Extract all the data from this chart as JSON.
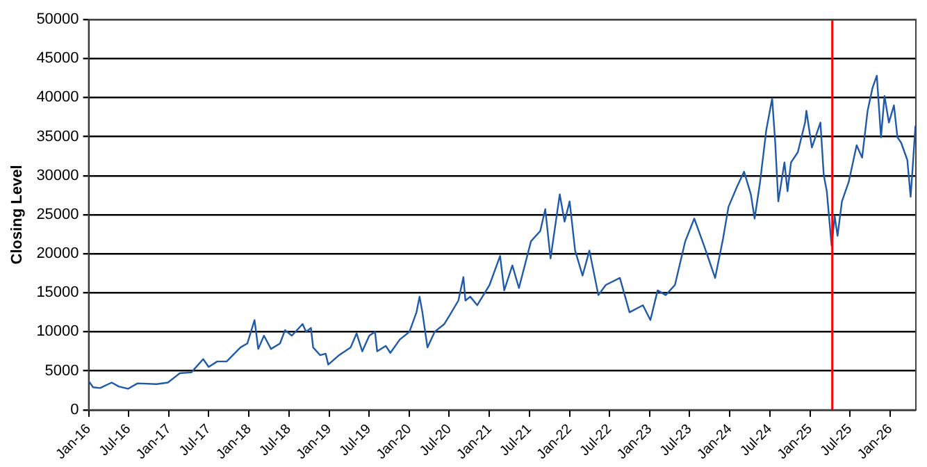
{
  "chart_data": {
    "type": "line",
    "ylabel": "Closing Level",
    "x": [
      "2016-01-01",
      "2016-01-21",
      "2016-02-22",
      "2016-04-15",
      "2016-05-17",
      "2016-06-28",
      "2016-08-11",
      "2016-11-06",
      "2016-12-27",
      "2017-02-20",
      "2017-04-13",
      "2017-06-06",
      "2017-07-01",
      "2017-08-09",
      "2017-09-21",
      "2017-11-23",
      "2017-12-24",
      "2018-01-26",
      "2018-02-12",
      "2018-03-10",
      "2018-04-11",
      "2018-05-22",
      "2018-06-14",
      "2018-07-15",
      "2018-09-02",
      "2018-09-18",
      "2018-10-10",
      "2018-10-20",
      "2018-11-21",
      "2018-12-16",
      "2018-12-28",
      "2019-02-15",
      "2019-04-09",
      "2019-05-06",
      "2019-06-01",
      "2019-07-03",
      "2019-07-29",
      "2019-08-08",
      "2019-09-16",
      "2019-10-07",
      "2019-11-19",
      "2020-01-02",
      "2020-02-03",
      "2020-02-17",
      "2020-03-01",
      "2020-03-24",
      "2020-04-26",
      "2020-06-09",
      "2020-07-01",
      "2020-08-12",
      "2020-09-04",
      "2020-09-13",
      "2020-10-05",
      "2020-11-06",
      "2021-01-01",
      "2021-02-18",
      "2021-03-09",
      "2021-04-15",
      "2021-05-15",
      "2021-07-09",
      "2021-08-20",
      "2021-09-12",
      "2021-10-06",
      "2021-11-17",
      "2021-12-09",
      "2022-01-01",
      "2022-01-26",
      "2022-03-01",
      "2022-04-01",
      "2022-05-12",
      "2022-06-15",
      "2022-08-18",
      "2022-10-01",
      "2022-12-01",
      "2023-01-04",
      "2023-02-06",
      "2023-03-15",
      "2023-04-26",
      "2023-06-12",
      "2023-07-23",
      "2023-09-06",
      "2023-10-26",
      "2023-12-01",
      "2023-12-26",
      "2024-02-03",
      "2024-03-06",
      "2024-04-06",
      "2024-04-23",
      "2024-05-18",
      "2024-06-15",
      "2024-07-12",
      "2024-07-26",
      "2024-08-09",
      "2024-09-06",
      "2024-09-20",
      "2024-10-06",
      "2024-11-06",
      "2024-12-09",
      "2024-12-15",
      "2025-01-09",
      "2025-02-17",
      "2025-03-04",
      "2025-03-18",
      "2025-04-09",
      "2025-04-23",
      "2025-05-06",
      "2025-05-26",
      "2025-06-26",
      "2025-08-01",
      "2025-08-26",
      "2025-09-20",
      "2025-10-12",
      "2025-11-01",
      "2025-11-20",
      "2025-12-06",
      "2025-12-26",
      "2026-01-18",
      "2026-02-03",
      "2026-02-20",
      "2026-03-20",
      "2026-04-04",
      "2026-04-12",
      "2026-04-26"
    ],
    "series": [
      {
        "color": "#1f5aa8",
        "values": [
          3700,
          2900,
          2800,
          3500,
          3000,
          2700,
          3400,
          3300,
          3500,
          4700,
          4800,
          6500,
          5500,
          6200,
          6200,
          8000,
          8500,
          11500,
          7800,
          9500,
          7800,
          8500,
          10200,
          9500,
          11000,
          10000,
          10500,
          8000,
          7000,
          7200,
          5800,
          7000,
          8000,
          9800,
          7500,
          9500,
          10000,
          7500,
          8200,
          7300,
          9000,
          10000,
          12500,
          14500,
          12500,
          8000,
          10000,
          11000,
          12000,
          14000,
          17000,
          14000,
          14500,
          13400,
          16000,
          19700,
          15300,
          18500,
          15600,
          21600,
          22900,
          25700,
          19400,
          27600,
          24100,
          26700,
          20400,
          17200,
          20400,
          14700,
          16000,
          16900,
          12500,
          13400,
          11500,
          15300,
          14700,
          16000,
          21600,
          24500,
          21000,
          16900,
          21900,
          26000,
          28600,
          30500,
          27600,
          24500,
          29200,
          35800,
          39900,
          34200,
          26700,
          31700,
          28000,
          31700,
          33000,
          36800,
          38300,
          33600,
          36800,
          30100,
          28000,
          21000,
          24800,
          22300,
          26700,
          29200,
          33900,
          32300,
          38300,
          41200,
          42800,
          34900,
          40200,
          36800,
          39000,
          34900,
          34200,
          32000,
          27300,
          30500,
          36400
        ]
      }
    ],
    "xlim": [
      "2016-01-01",
      "2026-04-28"
    ],
    "xticks": [
      {
        "value": "2016-01-01",
        "label": "Jan-16"
      },
      {
        "value": "2016-07-01",
        "label": "Jul-16"
      },
      {
        "value": "2017-01-01",
        "label": "Jan-17"
      },
      {
        "value": "2017-07-01",
        "label": "Jul-17"
      },
      {
        "value": "2018-01-01",
        "label": "Jan-18"
      },
      {
        "value": "2018-07-01",
        "label": "Jul-18"
      },
      {
        "value": "2019-01-01",
        "label": "Jan-19"
      },
      {
        "value": "2019-07-01",
        "label": "Jul-19"
      },
      {
        "value": "2020-01-01",
        "label": "Jan-20"
      },
      {
        "value": "2020-07-01",
        "label": "Jul-20"
      },
      {
        "value": "2021-01-01",
        "label": "Jan-21"
      },
      {
        "value": "2021-07-01",
        "label": "Jul-21"
      },
      {
        "value": "2022-01-01",
        "label": "Jan-22"
      },
      {
        "value": "2022-07-01",
        "label": "Jul-22"
      },
      {
        "value": "2023-01-01",
        "label": "Jan-23"
      },
      {
        "value": "2023-07-01",
        "label": "Jul-23"
      },
      {
        "value": "2024-01-01",
        "label": "Jan-24"
      },
      {
        "value": "2024-07-01",
        "label": "Jul-24"
      },
      {
        "value": "2025-01-01",
        "label": "Jan-25"
      },
      {
        "value": "2025-07-01",
        "label": "Jul-25"
      },
      {
        "value": "2026-01-01",
        "label": "Jan-26"
      }
    ],
    "ylim": [
      0,
      50000
    ],
    "yticks": [
      0,
      5000,
      10000,
      15000,
      20000,
      25000,
      30000,
      35000,
      40000,
      45000,
      50000
    ],
    "grid": "y",
    "marker": "none",
    "line_style": "solid",
    "ref_lines": [
      {
        "axis": "x",
        "value": "2025-04-12",
        "color": "#ff0000"
      }
    ]
  }
}
